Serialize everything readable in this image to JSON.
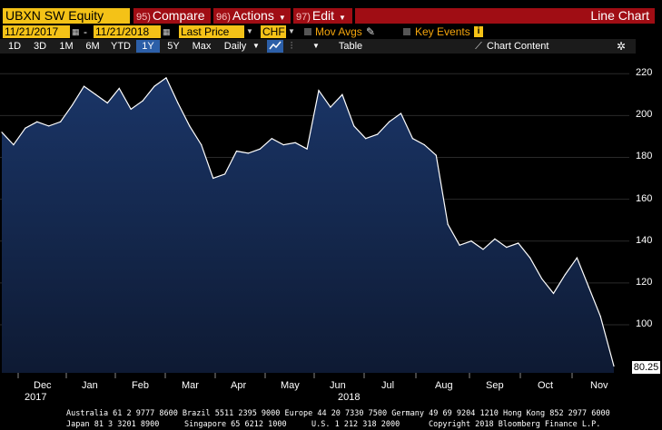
{
  "header": {
    "ticker": "UBXN SW Equity",
    "compare": {
      "num": "95)",
      "label": "Compare"
    },
    "actions": {
      "num": "96)",
      "label": "Actions"
    },
    "edit": {
      "num": "97)",
      "label": "Edit"
    },
    "title": "Line Chart"
  },
  "controls": {
    "start_date": "11/21/2017",
    "dash": "-",
    "end_date": "11/21/2018",
    "field": "Last Price",
    "currency": "CHF",
    "mov_avgs": "Mov Avgs",
    "key_events": "Key Events"
  },
  "toolbar": {
    "periods": [
      "1D",
      "3D",
      "1M",
      "6M",
      "YTD",
      "1Y",
      "5Y",
      "Max"
    ],
    "selected_period": "1Y",
    "frequency": "Daily",
    "table": "Table",
    "chart_content": "Chart Content"
  },
  "colors": {
    "area_top": "#1a3567",
    "area_bottom": "#0e1a33",
    "line": "#ffffff",
    "accent_yellow": "#f4c217",
    "accent_red": "#a00d14"
  },
  "icons": [
    "calendar-icon",
    "dropdown-arrow-icon",
    "pencil-icon",
    "info-icon",
    "line-chart-icon",
    "bar-chart-icon",
    "chart-content-icon",
    "gear-icon"
  ],
  "chart_data": {
    "type": "area",
    "ylim": [
      77,
      224
    ],
    "yticks": [
      100,
      120,
      140,
      160,
      180,
      200,
      220
    ],
    "last_value_label": "80.25",
    "x_month_labels": [
      "Dec",
      "Jan",
      "Feb",
      "Mar",
      "Apr",
      "May",
      "Jun",
      "Jul",
      "Aug",
      "Sep",
      "Oct",
      "Nov"
    ],
    "x_year_labels": [
      "2017",
      "2018"
    ],
    "x": [
      "2017-11-21",
      "2017-11-28",
      "2017-12-05",
      "2017-12-12",
      "2017-12-19",
      "2017-12-26",
      "2018-01-02",
      "2018-01-09",
      "2018-01-16",
      "2018-01-23",
      "2018-01-30",
      "2018-02-06",
      "2018-02-13",
      "2018-02-20",
      "2018-02-27",
      "2018-03-06",
      "2018-03-13",
      "2018-03-20",
      "2018-03-27",
      "2018-04-03",
      "2018-04-10",
      "2018-04-17",
      "2018-04-24",
      "2018-05-01",
      "2018-05-08",
      "2018-05-15",
      "2018-05-22",
      "2018-05-29",
      "2018-06-05",
      "2018-06-12",
      "2018-06-19",
      "2018-06-26",
      "2018-07-03",
      "2018-07-10",
      "2018-07-17",
      "2018-07-24",
      "2018-07-31",
      "2018-08-07",
      "2018-08-14",
      "2018-08-21",
      "2018-08-28",
      "2018-09-04",
      "2018-09-11",
      "2018-09-18",
      "2018-09-25",
      "2018-10-02",
      "2018-10-09",
      "2018-10-16",
      "2018-10-23",
      "2018-10-30",
      "2018-11-06",
      "2018-11-13",
      "2018-11-21"
    ],
    "values": [
      192,
      186,
      194,
      197,
      195,
      197,
      205,
      214,
      210,
      206,
      213,
      203,
      207,
      214,
      218,
      206,
      195,
      186,
      170,
      172,
      183,
      182,
      184,
      189,
      186,
      187,
      184,
      212,
      204,
      210,
      195,
      189,
      191,
      197,
      201,
      189,
      186,
      181,
      148,
      138,
      140,
      136,
      141,
      137,
      139,
      132,
      122,
      115,
      124,
      132,
      118,
      104,
      80.25
    ]
  },
  "footer": {
    "line1": "Australia 61 2 9777 8600 Brazil 5511 2395 9000 Europe 44 20 7330 7500 Germany 49 69 9204 1210 Hong Kong 852 2977 6000",
    "line2_left": "Japan 81 3 3201 8900",
    "line2_mid1": "Singapore 65 6212 1000",
    "line2_mid2": "U.S. 1 212 318 2000",
    "line2_right": "Copyright 2018 Bloomberg Finance L.P."
  }
}
